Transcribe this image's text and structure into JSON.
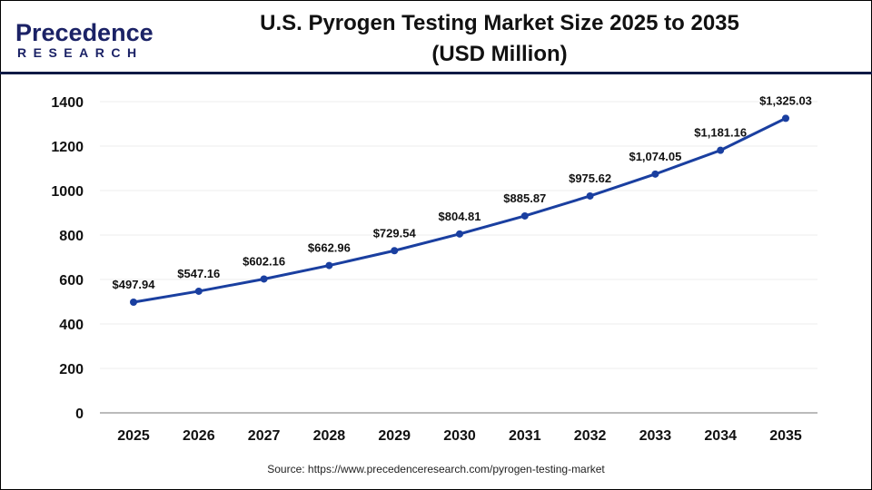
{
  "logo": {
    "text_top": "Precedence",
    "text_bottom": "RESEARCH"
  },
  "title_line1": "U.S. Pyrogen Testing Market Size 2025 to 2035",
  "title_line2": "(USD Million)",
  "source": "Source: https://www.precedenceresearch.com/pyrogen-testing-market",
  "chart_data": {
    "type": "line",
    "title": "U.S. Pyrogen Testing Market Size 2025 to 2035 (USD Million)",
    "categories": [
      "2025",
      "2026",
      "2027",
      "2028",
      "2029",
      "2030",
      "2031",
      "2032",
      "2033",
      "2034",
      "2035"
    ],
    "values": [
      497.94,
      547.16,
      602.16,
      662.96,
      729.54,
      804.81,
      885.87,
      975.62,
      1074.05,
      1181.16,
      1325.03
    ],
    "data_labels": [
      "$497.94",
      "$547.16",
      "$602.16",
      "$662.96",
      "$729.54",
      "$804.81",
      "$885.87",
      "$975.62",
      "$1,074.05",
      "$1,181.16",
      "$1,325.03"
    ],
    "yticks": [
      "0",
      "200",
      "400",
      "600",
      "800",
      "1000",
      "1200",
      "1400"
    ],
    "ylim": [
      0,
      1400
    ],
    "grid": true,
    "line_color": "#1a3fa0"
  }
}
